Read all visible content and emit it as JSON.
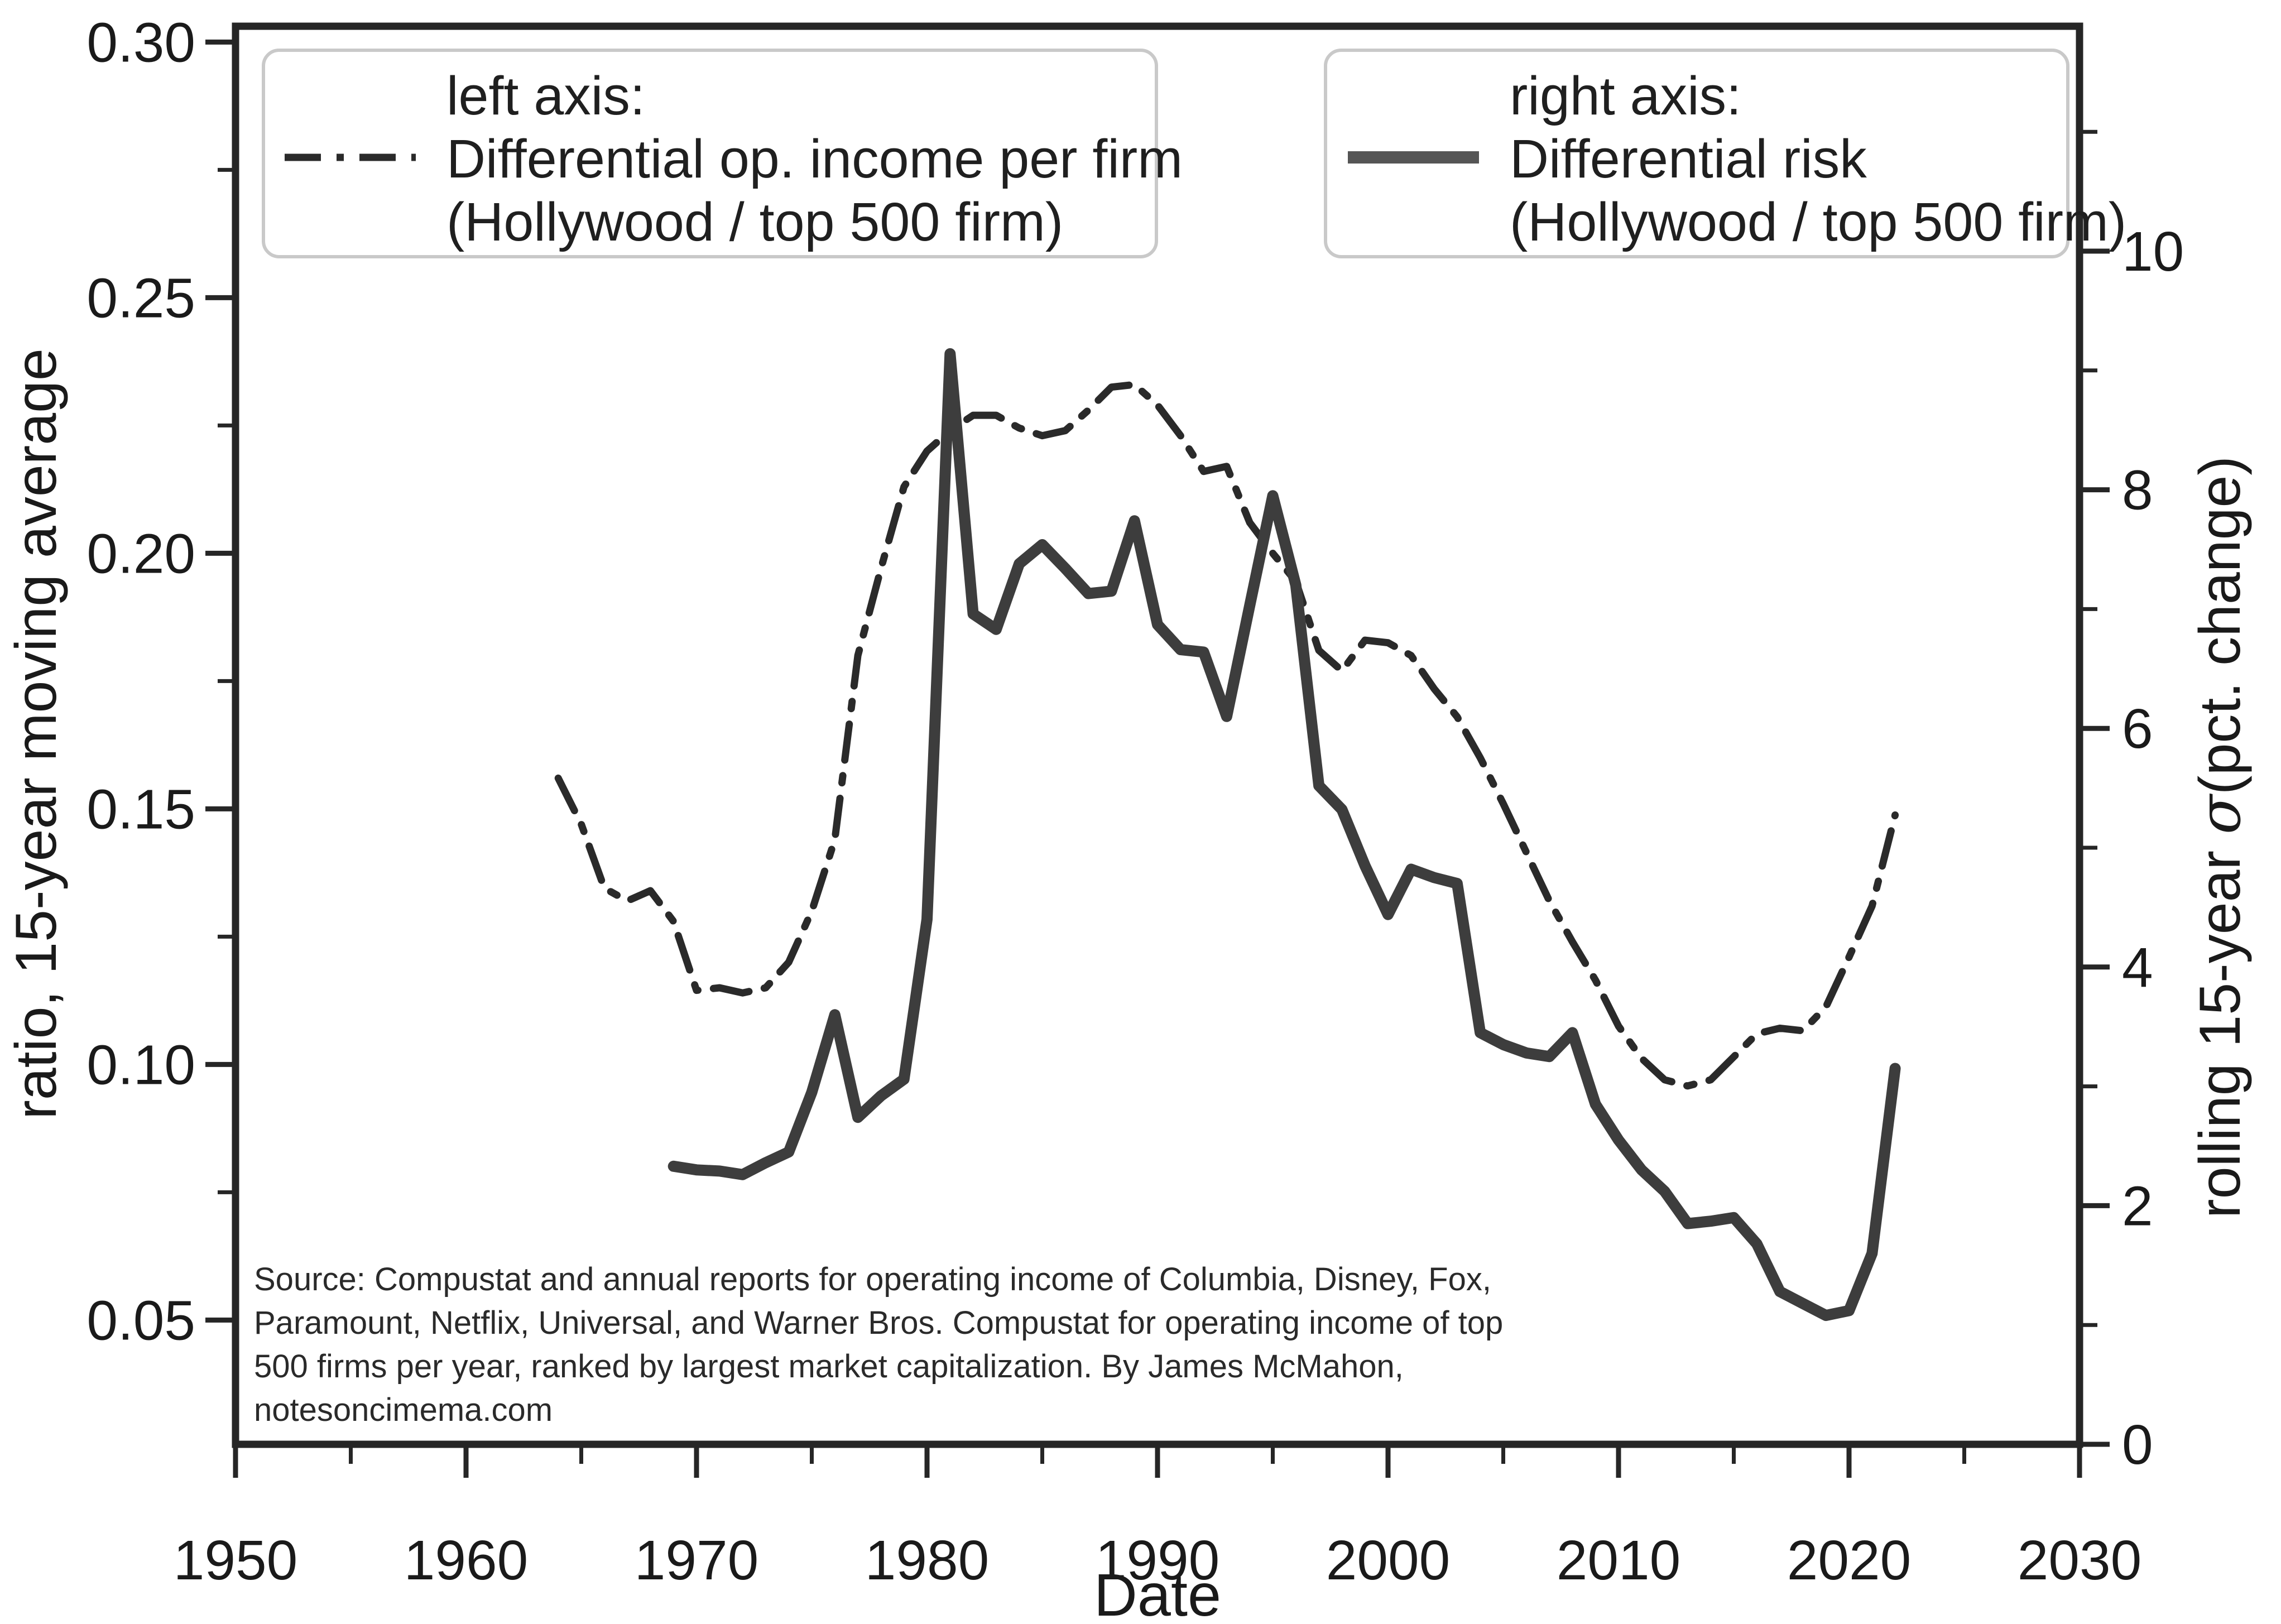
{
  "figure": {
    "bg_color": "#ffffff",
    "ink_color": "#262626"
  },
  "legend_left": {
    "lines": [
      "left axis:",
      "Differential op. income per firm",
      "(Hollywood / top 500 firm)"
    ],
    "marker_style": "dash-dot",
    "marker_color": "#2a2a2a"
  },
  "legend_right": {
    "lines": [
      "right axis:",
      "Differential risk",
      "(Hollywood / top 500 firm)"
    ],
    "marker_style": "solid",
    "marker_color": "#555555"
  },
  "source_note": {
    "lines": [
      "Source: Compustat and annual reports for operating income of Columbia, Disney, Fox,",
      "Paramount, Netflix, Universal, and Warner Bros. Compustat for operating income of top",
      "500 firms per year, ranked by largest market capitalization. By James McMahon,",
      "notesoncimema.com"
    ]
  },
  "chart_data": {
    "type": "line",
    "title": "",
    "xlabel": "Date",
    "ylabel_left": "ratio, 15-year moving average",
    "ylabel_right": "rolling 15-year σ(pct. change)",
    "ylabel_right_parts": [
      "rolling 15-year ",
      "σ",
      "(pct. change)"
    ],
    "xlim": [
      1950,
      2030
    ],
    "ylim_left": [
      0.0257,
      0.3031
    ],
    "ylim_right": [
      0,
      11.885
    ],
    "grid": false,
    "legend_position": "top",
    "x_ticks": [
      1950,
      1960,
      1970,
      1980,
      1990,
      2000,
      2010,
      2020,
      2030
    ],
    "x_minor_ticks": [
      1955,
      1965,
      1975,
      1985,
      1995,
      2005,
      2015,
      2025
    ],
    "left_ticks": [
      0.05,
      0.1,
      0.15,
      0.2,
      0.25,
      0.3
    ],
    "left_minor_ticks": [
      0.075,
      0.125,
      0.175,
      0.225,
      0.275
    ],
    "right_ticks": [
      0,
      2,
      4,
      6,
      8,
      10
    ],
    "right_minor_ticks": [
      1,
      3,
      5,
      7,
      9,
      11
    ],
    "series": [
      {
        "name": "Differential op. income per firm (Hollywood / top 500 firm)",
        "axis": "left",
        "style": "dashdot",
        "color": "#2a2a2a",
        "x": [
          1964,
          1965,
          1966,
          1967,
          1968,
          1969,
          1970,
          1971,
          1972,
          1973,
          1974,
          1975,
          1976,
          1977,
          1978,
          1979,
          1980,
          1981,
          1982,
          1983,
          1984,
          1985,
          1986,
          1987,
          1988,
          1989,
          1990,
          1991,
          1992,
          1993,
          1994,
          1995,
          1996,
          1997,
          1998,
          1999,
          2000,
          2001,
          2002,
          2003,
          2004,
          2005,
          2006,
          2007,
          2008,
          2009,
          2010,
          2011,
          2012,
          2013,
          2014,
          2015,
          2016,
          2017,
          2018,
          2019,
          2020,
          2021,
          2022
        ],
        "y": [
          0.156,
          0.147,
          0.1345,
          0.132,
          0.134,
          0.128,
          0.1145,
          0.115,
          0.114,
          0.115,
          0.12,
          0.13,
          0.144,
          0.18,
          0.197,
          0.213,
          0.22,
          0.224,
          0.227,
          0.227,
          0.2245,
          0.223,
          0.224,
          0.228,
          0.2325,
          0.233,
          0.229,
          0.223,
          0.216,
          0.217,
          0.206,
          0.2,
          0.1945,
          0.181,
          0.177,
          0.183,
          0.1825,
          0.18,
          0.1735,
          0.168,
          0.16,
          0.151,
          0.1415,
          0.132,
          0.124,
          0.1165,
          0.1075,
          0.1012,
          0.097,
          0.0958,
          0.097,
          0.1015,
          0.106,
          0.1071,
          0.1066,
          0.1113,
          0.121,
          0.131,
          0.1488
        ]
      },
      {
        "name": "Differential risk (Hollywood / top 500 firm)",
        "axis": "right",
        "style": "solid",
        "color": "#3d3d3d",
        "x": [
          1969,
          1970,
          1971,
          1972,
          1973,
          1974,
          1975,
          1976,
          1977,
          1978,
          1979,
          1980,
          1981,
          1982,
          1983,
          1984,
          1985,
          1986,
          1987,
          1988,
          1989,
          1990,
          1991,
          1992,
          1993,
          1994,
          1995,
          1996,
          1997,
          1998,
          1999,
          2000,
          2001,
          2002,
          2003,
          2004,
          2005,
          2006,
          2007,
          2008,
          2009,
          2010,
          2011,
          2012,
          2013,
          2014,
          2015,
          2016,
          2017,
          2018,
          2019,
          2020,
          2021,
          2022
        ],
        "y": [
          2.33,
          2.3,
          2.29,
          2.26,
          2.36,
          2.45,
          2.95,
          3.6,
          2.74,
          2.92,
          3.06,
          4.4,
          9.14,
          6.96,
          6.83,
          7.38,
          7.54,
          7.34,
          7.13,
          7.15,
          7.74,
          6.87,
          6.66,
          6.64,
          6.1,
          7.03,
          7.95,
          7.2,
          5.52,
          5.32,
          4.85,
          4.44,
          4.82,
          4.75,
          4.7,
          3.45,
          3.35,
          3.28,
          3.25,
          3.45,
          2.85,
          2.55,
          2.3,
          2.12,
          1.85,
          1.87,
          1.9,
          1.68,
          1.28,
          1.18,
          1.08,
          1.12,
          1.6,
          3.15
        ]
      }
    ]
  }
}
